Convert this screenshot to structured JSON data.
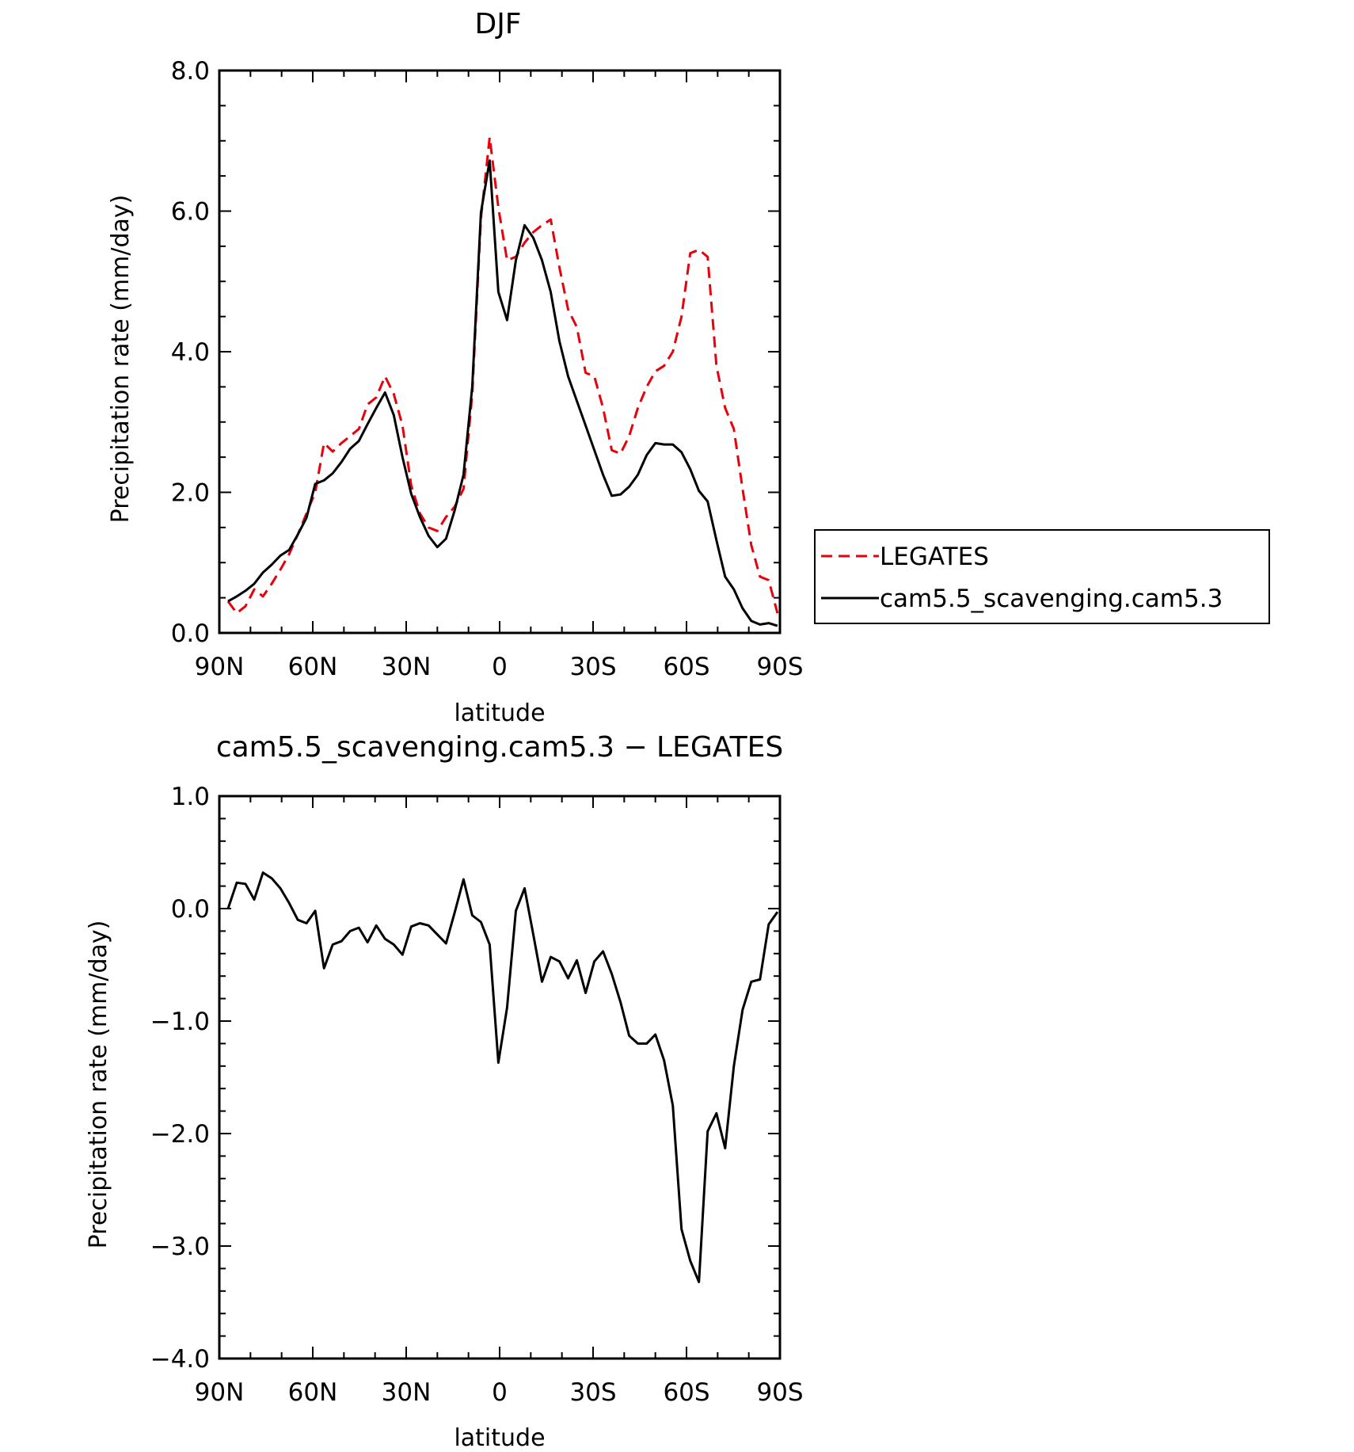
{
  "chart_data": [
    {
      "type": "line",
      "title": "DJF",
      "xlabel": "latitude",
      "ylabel": "Precipitation rate (mm/day)",
      "xlim": [
        90,
        -90
      ],
      "ylim": [
        0,
        8
      ],
      "x_ticks": [
        90,
        60,
        30,
        0,
        -30,
        -60,
        -90
      ],
      "x_tick_labels": [
        "90N",
        "60N",
        "30N",
        "0",
        "30S",
        "60S",
        "90S"
      ],
      "y_ticks": [
        0,
        2,
        4,
        6,
        8
      ],
      "y_tick_labels": [
        "0.0",
        "2.0",
        "4.0",
        "6.0",
        "8.0"
      ],
      "legend_position": "right",
      "series": [
        {
          "name": "LEGATES",
          "color": "#e8000b",
          "style": "dashed",
          "x": [
            87.2,
            84.4,
            81.6,
            78.8,
            76.0,
            73.2,
            70.4,
            67.6,
            64.8,
            62.0,
            59.2,
            56.4,
            53.6,
            50.8,
            48.0,
            45.2,
            42.4,
            39.6,
            36.8,
            34.0,
            31.2,
            28.4,
            25.6,
            22.8,
            20.0,
            17.2,
            14.4,
            11.6,
            8.8,
            6.0,
            3.2,
            0.4,
            -2.4,
            -5.2,
            -8.0,
            -10.8,
            -13.6,
            -16.4,
            -19.2,
            -22.0,
            -24.8,
            -27.6,
            -30.4,
            -33.2,
            -36.0,
            -38.8,
            -41.6,
            -44.4,
            -47.2,
            -50.0,
            -52.8,
            -55.6,
            -58.4,
            -61.2,
            -64.0,
            -66.8,
            -69.6,
            -72.4,
            -75.2,
            -78.0,
            -80.8,
            -83.6,
            -86.4,
            -89.2
          ],
          "values": [
            0.45,
            0.28,
            0.38,
            0.62,
            0.52,
            0.7,
            0.9,
            1.12,
            1.4,
            1.7,
            2.0,
            2.7,
            2.58,
            2.7,
            2.8,
            2.9,
            3.25,
            3.35,
            3.65,
            3.4,
            2.95,
            2.1,
            1.7,
            1.5,
            1.45,
            1.65,
            1.8,
            2.05,
            3.4,
            5.9,
            7.05,
            6.05,
            5.3,
            5.35,
            5.55,
            5.7,
            5.8,
            5.88,
            5.2,
            4.6,
            4.35,
            3.7,
            3.65,
            3.2,
            2.6,
            2.55,
            2.8,
            3.2,
            3.5,
            3.72,
            3.8,
            4.0,
            4.5,
            5.4,
            5.45,
            5.35,
            3.8,
            3.2,
            2.9,
            2.05,
            1.25,
            0.8,
            0.75,
            0.28
          ]
        },
        {
          "name": "cam5.5_scavenging.cam5.3",
          "color": "#000000",
          "style": "solid",
          "x": [
            87.2,
            84.4,
            81.6,
            78.8,
            76.0,
            73.2,
            70.4,
            67.6,
            64.8,
            62.0,
            59.2,
            56.4,
            53.6,
            50.8,
            48.0,
            45.2,
            42.4,
            39.6,
            36.8,
            34.0,
            31.2,
            28.4,
            25.6,
            22.8,
            20.0,
            17.2,
            14.4,
            11.6,
            8.8,
            6.0,
            3.2,
            0.4,
            -2.4,
            -5.2,
            -8.0,
            -10.8,
            -13.6,
            -16.4,
            -19.2,
            -22.0,
            -24.8,
            -27.6,
            -30.4,
            -33.2,
            -36.0,
            -38.8,
            -41.6,
            -44.4,
            -47.2,
            -50.0,
            -52.8,
            -55.6,
            -58.4,
            -61.2,
            -64.0,
            -66.8,
            -69.6,
            -72.4,
            -75.2,
            -78.0,
            -80.8,
            -83.6,
            -86.4,
            -89.2
          ],
          "values": [
            0.45,
            0.52,
            0.6,
            0.7,
            0.86,
            0.97,
            1.1,
            1.18,
            1.4,
            1.64,
            2.12,
            2.17,
            2.27,
            2.43,
            2.62,
            2.73,
            2.97,
            3.2,
            3.42,
            3.1,
            2.5,
            1.98,
            1.65,
            1.38,
            1.22,
            1.34,
            1.75,
            2.25,
            3.5,
            5.98,
            6.72,
            4.85,
            4.45,
            5.3,
            5.8,
            5.62,
            5.3,
            4.85,
            4.15,
            3.65,
            3.3,
            2.95,
            2.6,
            2.25,
            1.95,
            1.97,
            2.08,
            2.25,
            2.53,
            2.7,
            2.68,
            2.68,
            2.57,
            2.33,
            2.02,
            1.87,
            1.32,
            0.8,
            0.62,
            0.35,
            0.17,
            0.12,
            0.14,
            0.1
          ]
        }
      ]
    },
    {
      "type": "line",
      "title": "cam5.5_scavenging.cam5.3 − LEGATES",
      "xlabel": "latitude",
      "ylabel": "Precipitation rate (mm/day)",
      "xlim": [
        90,
        -90
      ],
      "ylim": [
        -4,
        1
      ],
      "x_ticks": [
        90,
        60,
        30,
        0,
        -30,
        -60,
        -90
      ],
      "x_tick_labels": [
        "90N",
        "60N",
        "30N",
        "0",
        "30S",
        "60S",
        "90S"
      ],
      "y_ticks": [
        -4,
        -3,
        -2,
        -1,
        0,
        1
      ],
      "y_tick_labels": [
        "−4.0",
        "−3.0",
        "−2.0",
        "−1.0",
        "0.0",
        "1.0"
      ],
      "series": [
        {
          "color": "#000000",
          "style": "solid",
          "x": [
            87.2,
            84.4,
            81.6,
            78.8,
            76.0,
            73.2,
            70.4,
            67.6,
            64.8,
            62.0,
            59.2,
            56.4,
            53.6,
            50.8,
            48.0,
            45.2,
            42.4,
            39.6,
            36.8,
            34.0,
            31.2,
            28.4,
            25.6,
            22.8,
            20.0,
            17.2,
            14.4,
            11.6,
            8.8,
            6.0,
            3.2,
            0.4,
            -2.4,
            -5.2,
            -8.0,
            -10.8,
            -13.6,
            -16.4,
            -19.2,
            -22.0,
            -24.8,
            -27.6,
            -30.4,
            -33.2,
            -36.0,
            -38.8,
            -41.6,
            -44.4,
            -47.2,
            -50.0,
            -52.8,
            -55.6,
            -58.4,
            -61.2,
            -64.0,
            -66.8,
            -69.6,
            -72.4,
            -75.2,
            -78.0,
            -80.8,
            -83.6,
            -86.4,
            -89.2
          ],
          "values": [
            0.0,
            0.23,
            0.22,
            0.08,
            0.32,
            0.27,
            0.18,
            0.05,
            -0.1,
            -0.13,
            -0.02,
            -0.53,
            -0.32,
            -0.29,
            -0.2,
            -0.17,
            -0.3,
            -0.15,
            -0.27,
            -0.32,
            -0.41,
            -0.16,
            -0.13,
            -0.15,
            -0.23,
            -0.31,
            -0.03,
            0.26,
            -0.06,
            -0.12,
            -0.32,
            -1.37,
            -0.88,
            -0.02,
            0.18,
            -0.23,
            -0.65,
            -0.43,
            -0.47,
            -0.62,
            -0.46,
            -0.75,
            -0.47,
            -0.38,
            -0.58,
            -0.83,
            -1.13,
            -1.2,
            -1.2,
            -1.12,
            -1.35,
            -1.75,
            -2.85,
            -3.13,
            -3.32,
            -1.98,
            -1.82,
            -2.13,
            -1.4,
            -0.9,
            -0.65,
            -0.63,
            -0.14,
            -0.03
          ]
        }
      ]
    }
  ]
}
